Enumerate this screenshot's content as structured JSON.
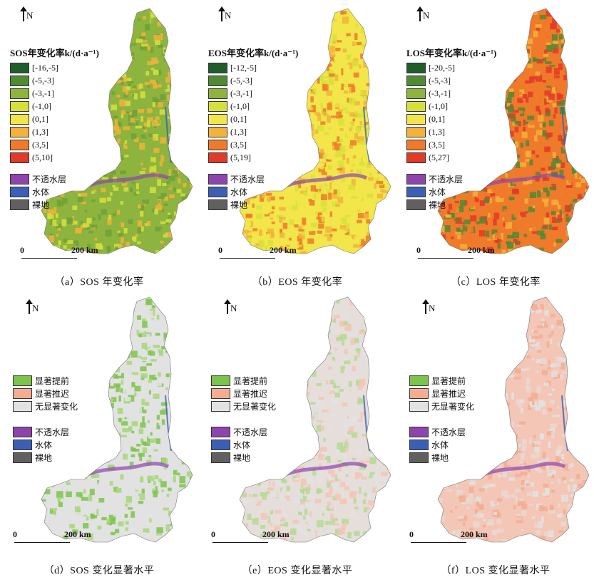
{
  "north_label": "N",
  "scale": {
    "zero": "0",
    "distance": "200 km"
  },
  "land_classes": [
    {
      "label": "不透水层",
      "color": "#8e44ad"
    },
    {
      "label": "水体",
      "color": "#3a5fb5"
    },
    {
      "label": "裸地",
      "color": "#606060"
    }
  ],
  "panels": [
    {
      "caption": "（a）SOS 年变化率",
      "legend_title": "SOS年变化率k/(d·a⁻¹)",
      "classes": [
        {
          "label": "[-16,-5]",
          "color": "#1f5e2a"
        },
        {
          "label": "(-5,-3]",
          "color": "#4f8a35"
        },
        {
          "label": "(-3,-1]",
          "color": "#8cb43e"
        },
        {
          "label": "(-1,0]",
          "color": "#d6e03c"
        },
        {
          "label": "(0,1]",
          "color": "#f2e64a"
        },
        {
          "label": "(1,3]",
          "color": "#f3b23a"
        },
        {
          "label": "(3,5]",
          "color": "#ee7a2a"
        },
        {
          "label": "(5,10]",
          "color": "#e23a28"
        }
      ],
      "dominant_colors": [
        "#8cb43e",
        "#d6e03c",
        "#6fa03a",
        "#f3b23a"
      ]
    },
    {
      "caption": "（b）EOS 年变化率",
      "legend_title": "EOS年变化率k/(d·a⁻¹)",
      "classes": [
        {
          "label": "[-12,-5]",
          "color": "#1f5e2a"
        },
        {
          "label": "(-5,-3]",
          "color": "#4f8a35"
        },
        {
          "label": "(-3,-1]",
          "color": "#8cb43e"
        },
        {
          "label": "(-1,0]",
          "color": "#d6e03c"
        },
        {
          "label": "(0,1]",
          "color": "#f2e64a"
        },
        {
          "label": "(1,3]",
          "color": "#f3b23a"
        },
        {
          "label": "(3,5]",
          "color": "#ee7a2a"
        },
        {
          "label": "(5,19]",
          "color": "#e23a28"
        }
      ],
      "dominant_colors": [
        "#f2e64a",
        "#f3b23a",
        "#d6e03c",
        "#ee7a2a"
      ]
    },
    {
      "caption": "（c）LOS 年变化率",
      "legend_title": "LOS年变化率k/(d·a⁻¹)",
      "classes": [
        {
          "label": "[-20,-5]",
          "color": "#1f5e2a"
        },
        {
          "label": "(-5,-3]",
          "color": "#4f8a35"
        },
        {
          "label": "(-3,-1]",
          "color": "#8cb43e"
        },
        {
          "label": "(-1,0]",
          "color": "#d6e03c"
        },
        {
          "label": "(0,1]",
          "color": "#f2e64a"
        },
        {
          "label": "(1,3]",
          "color": "#f3b23a"
        },
        {
          "label": "(3,5]",
          "color": "#ee7a2a"
        },
        {
          "label": "(5,27]",
          "color": "#e23a28"
        }
      ],
      "dominant_colors": [
        "#ee7a2a",
        "#f3b23a",
        "#e23a28",
        "#4f8a35"
      ]
    },
    {
      "caption": "（d）SOS 变化显著水平",
      "legend_title": "",
      "classes": [
        {
          "label": "显著提前",
          "color": "#7cc44a"
        },
        {
          "label": "显著推迟",
          "color": "#f3ad93"
        },
        {
          "label": "无显著变化",
          "color": "#e2e2e2"
        }
      ],
      "dominant_colors": [
        "#e2e2e2",
        "#a6d77a",
        "#7cc44a",
        "#e2e2e2"
      ]
    },
    {
      "caption": "（e）EOS 变化显著水平",
      "legend_title": "",
      "classes": [
        {
          "label": "显著提前",
          "color": "#7cc44a"
        },
        {
          "label": "显著推迟",
          "color": "#f3ad93"
        },
        {
          "label": "无显著变化",
          "color": "#e2e2e2"
        }
      ],
      "dominant_colors": [
        "#e6dedb",
        "#f3c6b6",
        "#e2e2e2",
        "#b4da92"
      ]
    },
    {
      "caption": "（f）LOS 变化显著水平",
      "legend_title": "",
      "classes": [
        {
          "label": "显著提前",
          "color": "#7cc44a"
        },
        {
          "label": "显著推迟",
          "color": "#f3ad93"
        },
        {
          "label": "无显著变化",
          "color": "#e2e2e2"
        }
      ],
      "dominant_colors": [
        "#f3c6b6",
        "#e9d8d2",
        "#f3ad93",
        "#e2e2e2"
      ]
    }
  ]
}
